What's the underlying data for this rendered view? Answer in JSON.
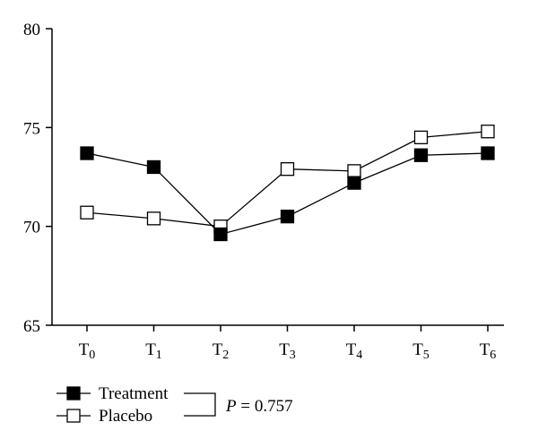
{
  "chart_data": {
    "type": "line",
    "title": "",
    "xlabel": "",
    "ylabel": "",
    "categories": [
      {
        "base": "T",
        "sub": "0"
      },
      {
        "base": "T",
        "sub": "1"
      },
      {
        "base": "T",
        "sub": "2"
      },
      {
        "base": "T",
        "sub": "3"
      },
      {
        "base": "T",
        "sub": "4"
      },
      {
        "base": "T",
        "sub": "5"
      },
      {
        "base": "T",
        "sub": "6"
      }
    ],
    "ylim": [
      65,
      80
    ],
    "yticks": [
      65,
      70,
      75,
      80
    ],
    "grid": false,
    "legend_position": "bottom-left",
    "series": [
      {
        "name": "Treatment",
        "marker": "filled-square",
        "values": [
          73.7,
          73.0,
          69.6,
          70.5,
          72.2,
          73.6,
          73.7
        ]
      },
      {
        "name": "Placebo",
        "marker": "open-square",
        "values": [
          70.7,
          70.4,
          70.0,
          72.9,
          72.8,
          74.5,
          74.8
        ]
      }
    ],
    "annotation": {
      "italic": "P",
      "text": " = 0.757"
    }
  }
}
